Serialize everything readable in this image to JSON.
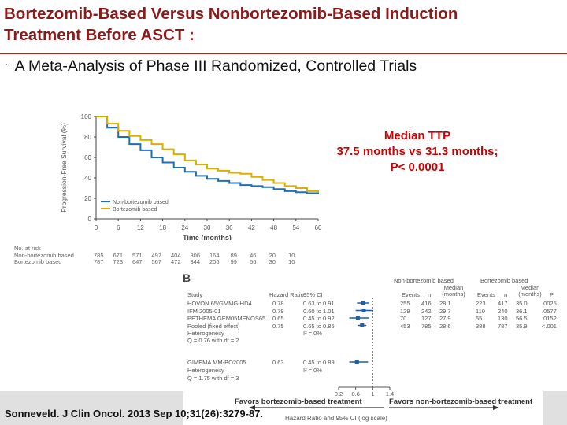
{
  "title_line1": "Bortezomib-Based Versus Nonbortezomib-Based Induction",
  "title_line2": "Treatment Before ASCT :",
  "bullet": "·",
  "subtitle": "A Meta-Analysis of Phase III Randomized, Controlled Trials",
  "median": {
    "line1": "Median TTP",
    "line2": "37.5 months vs 31.3 months;",
    "line3": "P< 0.0001"
  },
  "chart_data": [
    {
      "type": "line",
      "ylabel": "Progression-Free Survival (%)",
      "xlabel": "Time (months)",
      "xlim": [
        0,
        60
      ],
      "ylim": [
        0,
        100
      ],
      "xticks": [
        0,
        6,
        12,
        18,
        24,
        30,
        36,
        42,
        48,
        54,
        60
      ],
      "yticks": [
        0,
        20,
        40,
        60,
        80,
        100
      ],
      "legend": [
        "Non-bortezomib based",
        "Bortezomib based"
      ],
      "colors": [
        "#1f6fb2",
        "#d9b000"
      ],
      "series": [
        {
          "name": "Non-bortezomib based",
          "x": [
            0,
            3,
            6,
            9,
            12,
            15,
            18,
            21,
            24,
            27,
            30,
            33,
            36,
            39,
            42,
            45,
            48,
            51,
            54,
            57,
            60
          ],
          "values": [
            100,
            89,
            80,
            73,
            67,
            60,
            55,
            50,
            46,
            42,
            39,
            37,
            35,
            33,
            32,
            31,
            29,
            27,
            26,
            25,
            24
          ]
        },
        {
          "name": "Bortezomib based",
          "x": [
            0,
            3,
            6,
            9,
            12,
            15,
            18,
            21,
            24,
            27,
            30,
            33,
            36,
            39,
            42,
            45,
            48,
            51,
            54,
            57,
            60
          ],
          "values": [
            100,
            93,
            86,
            81,
            77,
            73,
            68,
            63,
            57,
            53,
            49,
            47,
            45,
            44,
            41,
            38,
            35,
            32,
            30,
            27,
            26
          ]
        }
      ]
    },
    {
      "type": "table",
      "title": "B",
      "headers": [
        "Study",
        "Hazard Ratio",
        "95% CI"
      ],
      "group_headers": [
        "Non-bortezomib based",
        "Bortezomib based"
      ],
      "subheaders": [
        "Events",
        "n",
        "Median (months)",
        "Events",
        "n",
        "Median (months)",
        "P"
      ],
      "rows": [
        {
          "study": "HOVON 65/GMMG-HD4",
          "hr": "0.78",
          "ci": "0.63 to 0.91",
          "e1": "255",
          "n1": "416",
          "m1": "28.1",
          "e2": "223",
          "n2": "417",
          "m2": "35.0",
          "p": ".0025"
        },
        {
          "study": "IFM 2005-01",
          "hr": "0.79",
          "ci": "0.60 to 1.01",
          "e1": "129",
          "n1": "242",
          "m1": "29.7",
          "e2": "110",
          "n2": "240",
          "m2": "36.1",
          "p": ".0577"
        },
        {
          "study": "PETHEMA GEM05MENOS65",
          "hr": "0.65",
          "ci": "0.45 to 0.92",
          "e1": "70",
          "n1": "127",
          "m1": "27.9",
          "e2": "55",
          "n2": "130",
          "m2": "56.5",
          "p": ".0152"
        },
        {
          "study": "Pooled (fixed effect)",
          "hr": "0.75",
          "ci": "0.65 to 0.85",
          "e1": "453",
          "n1": "785",
          "m1": "28.6",
          "e2": "388",
          "n2": "787",
          "m2": "35.9",
          "p": "<.001"
        }
      ],
      "heterogeneity1": [
        "Heterogeneity",
        "I² = 0%",
        "Q = 0.76 with df = 2"
      ],
      "row5": {
        "study": "GIMEMA MM-BO2005",
        "hr": "0.63",
        "ci": "0.45 to 0.89"
      },
      "heterogeneity2": [
        "Heterogeneity",
        "I² = 0%",
        "Q = 1.75 with df = 3"
      ],
      "xticks": [
        "0.2",
        "0.6",
        "1",
        "1.4"
      ],
      "xlabel": "Hazard Ratio and 95% CI (log scale)",
      "favors_left": "Favors bortezomib-based treatment",
      "favors_right": "Favors non-bortezomib-based treatment"
    }
  ],
  "risk": {
    "header": "No. at risk",
    "rows": [
      {
        "label": "Non-bortezomib based",
        "values": [
          "785",
          "671",
          "571",
          "497",
          "404",
          "306",
          "164",
          "89",
          "46",
          "20",
          "10"
        ]
      },
      {
        "label": "Bortezomib based",
        "values": [
          "787",
          "723",
          "647",
          "567",
          "472",
          "344",
          "206",
          "99",
          "56",
          "30",
          "10"
        ]
      }
    ]
  },
  "citation": "Sonneveld. J Clin Oncol. 2013 Sep 10;31(26):3279-87."
}
